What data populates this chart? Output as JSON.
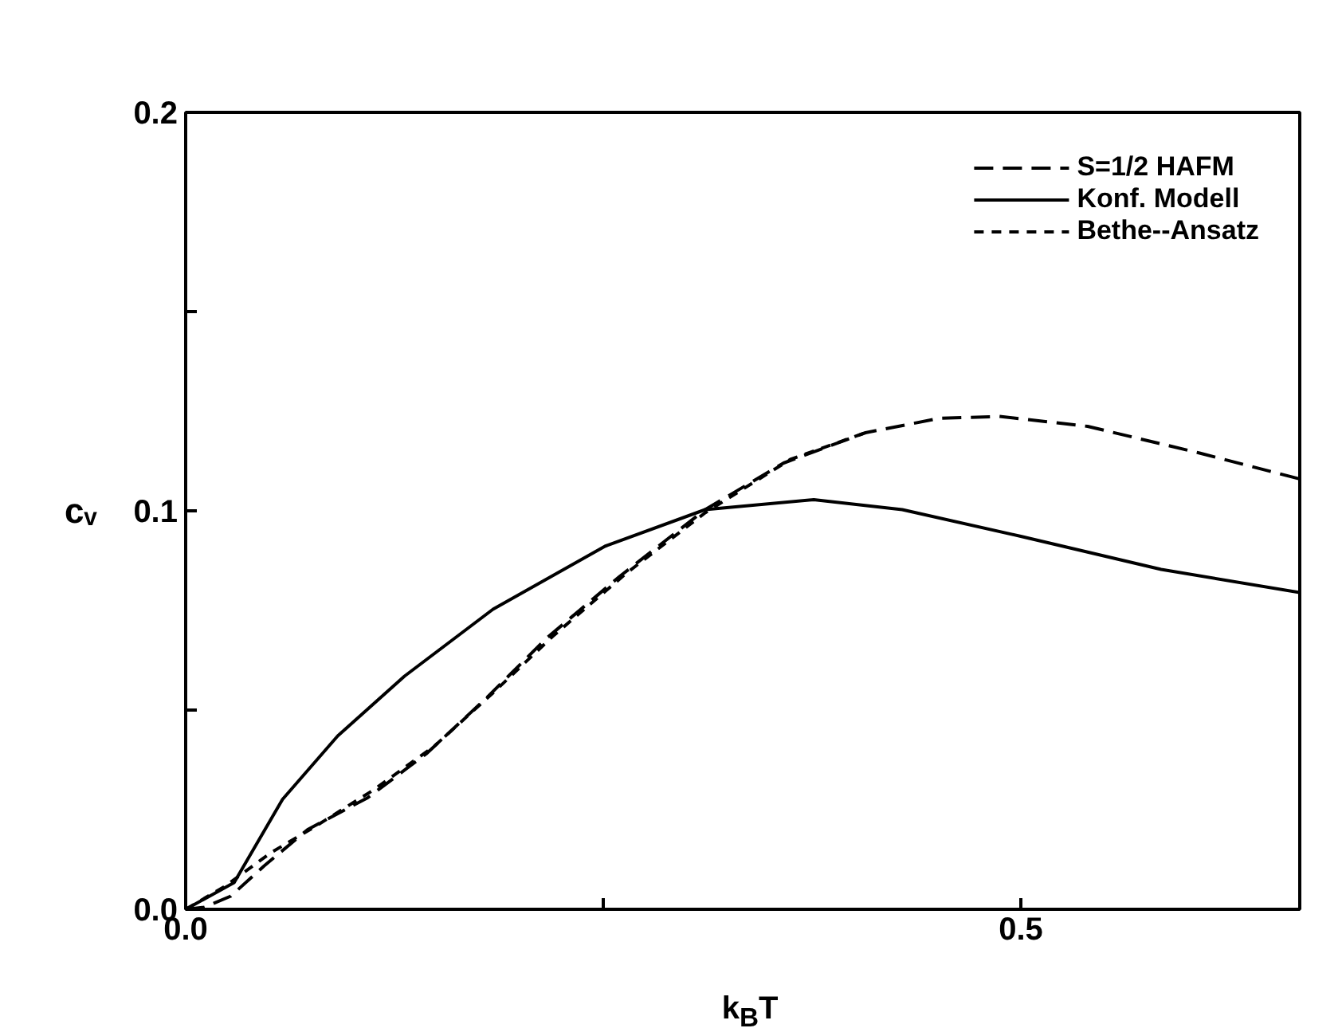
{
  "chart_data": {
    "type": "line",
    "xlabel": "k$_{B}$T",
    "ylabel": "cᵥ",
    "xlim": [
      0,
      0.667
    ],
    "ylim": [
      0,
      0.2
    ],
    "xticks": [
      {
        "value": 0,
        "label": "0.0"
      },
      {
        "value": 0.25,
        "label": null
      },
      {
        "value": 0.5,
        "label": "0.5"
      }
    ],
    "yticks": [
      {
        "value": 0,
        "label": "0.0"
      },
      {
        "value": 0.05,
        "label": null
      },
      {
        "value": 0.1,
        "label": "0.1"
      },
      {
        "value": 0.15,
        "label": null
      },
      {
        "value": 0.2,
        "label": "0.2"
      }
    ],
    "grid": false,
    "legend": "top right",
    "marker": "none",
    "series": [
      {
        "name": "S=1/2 HAFM",
        "color": "#000000",
        "line_style": "dashed",
        "x": [
          0,
          0.011,
          0.027,
          0.047,
          0.073,
          0.109,
          0.144,
          0.18,
          0.216,
          0.26,
          0.311,
          0.358,
          0.407,
          0.451,
          0.487,
          0.54,
          0.607,
          0.667
        ],
        "values": [
          0,
          0.0005,
          0.0033,
          0.0109,
          0.02,
          0.028,
          0.039,
          0.053,
          0.068,
          0.0836,
          0.1003,
          0.112,
          0.1196,
          0.1232,
          0.1237,
          0.1212,
          0.1145,
          0.108
        ]
      },
      {
        "name": "Konf. Modell",
        "color": "#000000",
        "line_style": "solid",
        "x": [
          0,
          0.029,
          0.058,
          0.091,
          0.131,
          0.184,
          0.251,
          0.311,
          0.376,
          0.429,
          0.5,
          0.584,
          0.667
        ],
        "values": [
          0,
          0.0067,
          0.0276,
          0.0435,
          0.0585,
          0.0753,
          0.0911,
          0.1003,
          0.1028,
          0.1003,
          0.0936,
          0.0853,
          0.0795
        ]
      },
      {
        "name": "Bethe--Ansatz",
        "color": "#000000",
        "line_style": "dotted",
        "x": [
          0,
          0.024,
          0.051,
          0.078,
          0.113,
          0.149,
          0.184,
          0.22,
          0.264,
          0.311,
          0.362,
          0.407
        ],
        "values": [
          0,
          0.0059,
          0.0142,
          0.0209,
          0.0301,
          0.041,
          0.0543,
          0.0686,
          0.0844,
          0.0995,
          0.1129,
          0.1196
        ]
      }
    ]
  }
}
